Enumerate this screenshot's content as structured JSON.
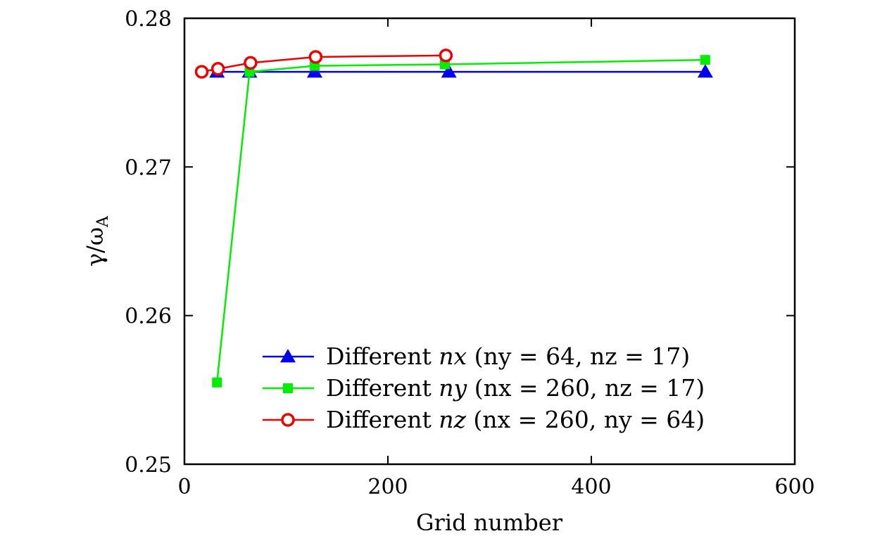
{
  "chart_data": {
    "type": "line",
    "title": "",
    "xlabel": "Grid number",
    "ylabel_main": "γ/ω",
    "ylabel_sub": "A",
    "xlim": [
      0,
      600
    ],
    "ylim": [
      0.25,
      0.28
    ],
    "xticks": [
      0,
      200,
      400,
      600
    ],
    "xtick_labels": [
      "0",
      "200",
      "400",
      "600"
    ],
    "yticks": [
      0.25,
      0.26,
      0.27,
      0.28
    ],
    "ytick_labels": [
      "0.25",
      "0.26",
      "0.27",
      "0.28"
    ],
    "grid": false,
    "legend_position": "lower-right",
    "series": [
      {
        "name": "Different nx (ny = 64, nz = 17)",
        "legend_prefix": "Different",
        "legend_var": "nx",
        "legend_params": "(ny = 64, nz = 17)",
        "color": "#0000ee",
        "marker": "triangle",
        "x": [
          32,
          64,
          128,
          260,
          512
        ],
        "y": [
          0.2764,
          0.2764,
          0.2764,
          0.2764,
          0.2764
        ]
      },
      {
        "name": "Different ny (nx = 260, nz = 17)",
        "legend_prefix": "Different",
        "legend_var": "ny",
        "legend_params": "(nx = 260, nz = 17)",
        "color": "#00ee00",
        "marker": "square",
        "x": [
          32,
          64,
          128,
          256,
          512
        ],
        "y": [
          0.2555,
          0.2764,
          0.2768,
          0.2769,
          0.2772
        ]
      },
      {
        "name": "Different nz (nx = 260, ny = 64)",
        "legend_prefix": "Different",
        "legend_var": "nz",
        "legend_params": "(nx = 260, ny = 64)",
        "color": "#ee0000",
        "marker": "open-circle",
        "x": [
          17,
          33,
          65,
          129,
          257
        ],
        "y": [
          0.2764,
          0.2766,
          0.277,
          0.2774,
          0.2775
        ]
      }
    ]
  }
}
